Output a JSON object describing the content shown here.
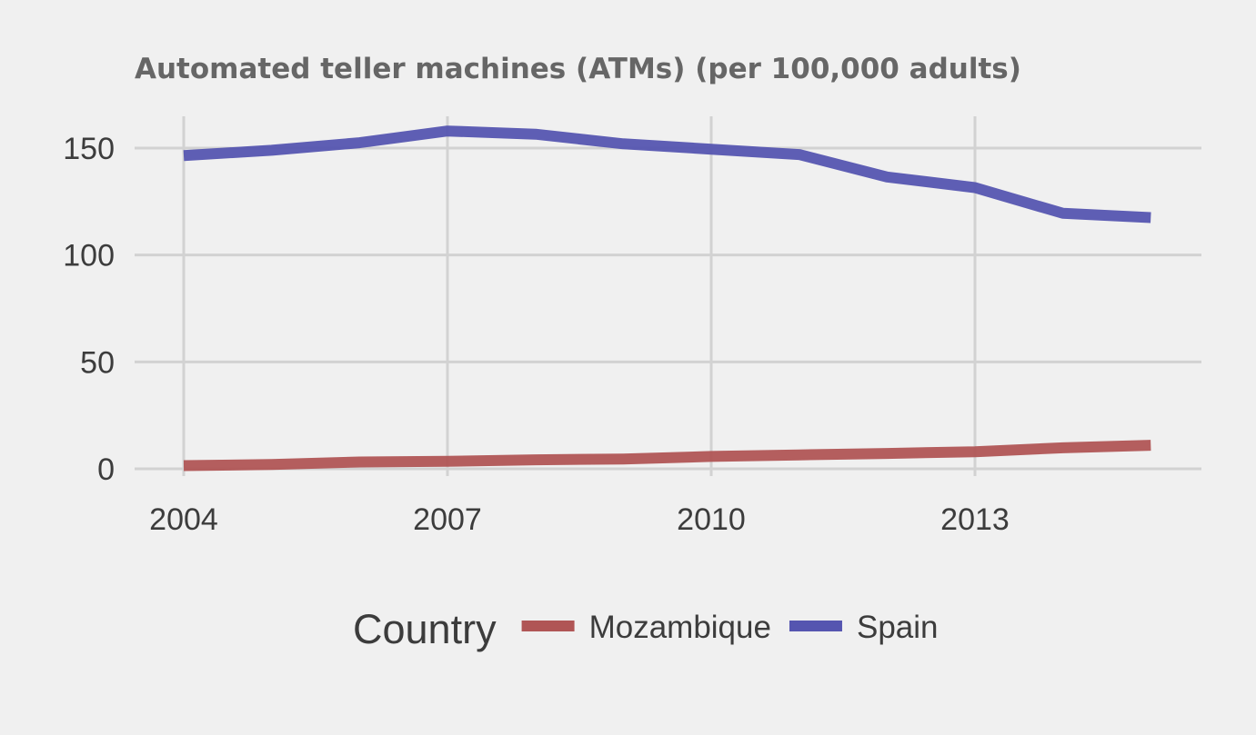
{
  "chart_data": {
    "type": "line",
    "title": "Automated teller machines (ATMs) (per 100,000 adults)",
    "xlabel": "",
    "ylabel": "",
    "x": [
      2004,
      2005,
      2006,
      2007,
      2008,
      2009,
      2010,
      2011,
      2012,
      2013,
      2014,
      2015
    ],
    "xticks": [
      "2004",
      "2007",
      "2010",
      "2013"
    ],
    "yticks": [
      "0",
      "50",
      "100",
      "150"
    ],
    "xlim": [
      2003.5,
      2015.5
    ],
    "ylim": [
      0,
      160
    ],
    "grid": true,
    "legend_title": "Country",
    "legend_position": "bottom",
    "series": [
      {
        "name": "Mozambique",
        "color": "#b05555",
        "values": [
          1.5,
          2.0,
          3.2,
          3.5,
          4.2,
          4.6,
          5.8,
          6.5,
          7.2,
          8.0,
          9.8,
          11.0
        ]
      },
      {
        "name": "Spain",
        "color": "#5555b0",
        "values": [
          146.5,
          149.0,
          152.5,
          158.0,
          156.5,
          152.0,
          149.5,
          147.0,
          136.5,
          131.5,
          119.5,
          117.5
        ]
      }
    ]
  }
}
